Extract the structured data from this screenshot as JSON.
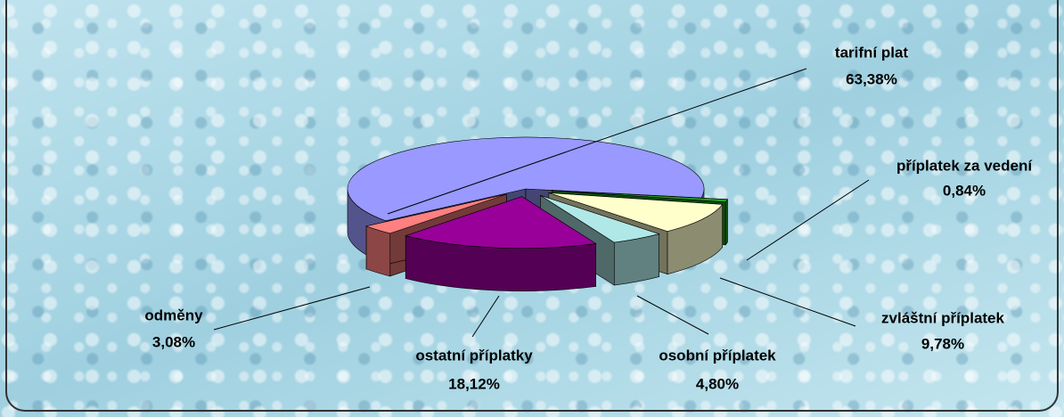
{
  "chart_data": {
    "type": "pie3d",
    "categories": [
      "příplatek za vedení",
      "zvláštní příplatek",
      "osobní příplatek",
      "ostatní příplatky",
      "odměny",
      "tarifní plat"
    ],
    "values": [
      0.84,
      9.78,
      4.8,
      18.12,
      3.08,
      63.38
    ],
    "value_labels": [
      "0,84%",
      "9,78%",
      "4,80%",
      "18,12%",
      "3,08%",
      "63,38%"
    ],
    "colors": [
      "#22a022",
      "#ffffcc",
      "#b0e8e8",
      "#990099",
      "#ff8080",
      "#9999ff"
    ]
  }
}
